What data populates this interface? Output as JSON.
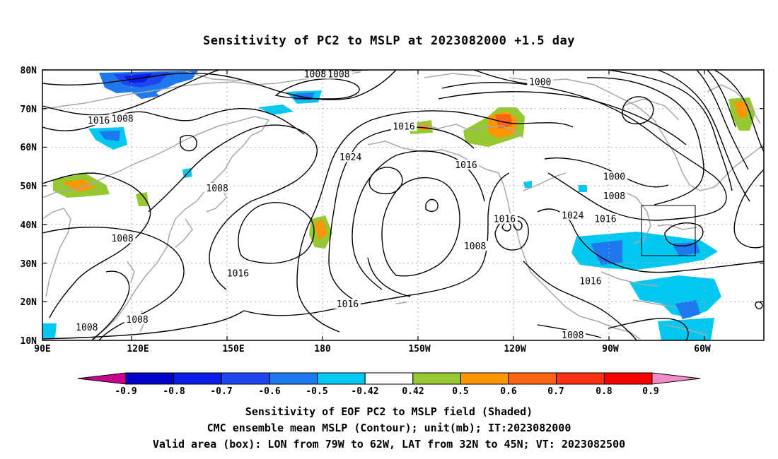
{
  "title": "Sensitivity of PC2 to MSLP at 2023082000 +1.5 day",
  "lat_labels": [
    "80N",
    "70N",
    "60N",
    "50N",
    "40N",
    "30N",
    "20N",
    "10N"
  ],
  "lon_labels": [
    "90E",
    "120E",
    "150E",
    "180",
    "150W",
    "120W",
    "90W",
    "60W"
  ],
  "colorbar": {
    "labels": [
      "-0.9",
      "-0.8",
      "-0.7",
      "-0.6",
      "-0.5",
      "-0.42",
      "0.42",
      "0.5",
      "0.6",
      "0.7",
      "0.8",
      "0.9"
    ],
    "colors": [
      "#c8008c",
      "#0000c8",
      "#0a1ee6",
      "#1e46f0",
      "#1e78f0",
      "#00c8f0",
      "#ffffff",
      "#96c832",
      "#ff9600",
      "#ff6414",
      "#ff3214",
      "#ff0000",
      "#f08cc8"
    ]
  },
  "contours": {
    "labels": [
      {
        "text": "1008",
        "lon": 182,
        "lat": 78.8
      },
      {
        "text": "1008",
        "lon": 190,
        "lat": 78.8
      },
      {
        "text": "1000",
        "lon": 258,
        "lat": 76.8
      },
      {
        "text": "1016",
        "lon": 109,
        "lat": 66.8
      },
      {
        "text": "1008",
        "lon": 117,
        "lat": 67.3
      },
      {
        "text": "1016",
        "lon": 212,
        "lat": 65.3
      },
      {
        "text": "1024",
        "lon": 194,
        "lat": 57.3
      },
      {
        "text": "1016",
        "lon": 233,
        "lat": 55.3
      },
      {
        "text": "1000",
        "lon": 283,
        "lat": 52.3
      },
      {
        "text": "1008",
        "lon": 149,
        "lat": 49.3
      },
      {
        "text": "1008",
        "lon": 283,
        "lat": 47.3
      },
      {
        "text": "1024",
        "lon": 269,
        "lat": 42.3
      },
      {
        "text": "1016",
        "lon": 246,
        "lat": 41.3
      },
      {
        "text": "1016",
        "lon": 280,
        "lat": 41.3
      },
      {
        "text": "1008",
        "lon": 117,
        "lat": 36.3
      },
      {
        "text": "1008",
        "lon": 236,
        "lat": 34.3
      },
      {
        "text": "1016",
        "lon": 156,
        "lat": 27.3
      },
      {
        "text": "1016",
        "lon": 275,
        "lat": 25.3
      },
      {
        "text": "1016",
        "lon": 193,
        "lat": 19.3
      },
      {
        "text": "1008",
        "lon": 122,
        "lat": 15.3
      },
      {
        "text": "1008",
        "lon": 105,
        "lat": 13.3
      },
      {
        "text": "1008",
        "lon": 269,
        "lat": 11.3
      }
    ]
  },
  "valid_box": {
    "lon_min": 281,
    "lon_max": 298,
    "lat_min": 32,
    "lat_max": 45
  },
  "captions": [
    "Sensitivity of EOF PC2 to MSLP field (Shaded)",
    "CMC ensemble mean MSLP (Contour); unit(mb); IT:2023082000",
    "Valid area (box): LON from 79W to 62W, LAT from 32N to 45N; VT: 2023082500"
  ]
}
